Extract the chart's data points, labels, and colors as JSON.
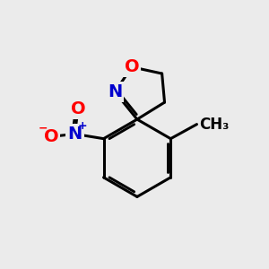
{
  "background_color": "#ebebeb",
  "bond_color": "#000000",
  "bond_width": 2.2,
  "atom_colors": {
    "O": "#ff0000",
    "N": "#0000cd",
    "C": "#000000"
  },
  "font_size_atom": 14,
  "font_size_charge": 9,
  "font_size_ch3": 12
}
